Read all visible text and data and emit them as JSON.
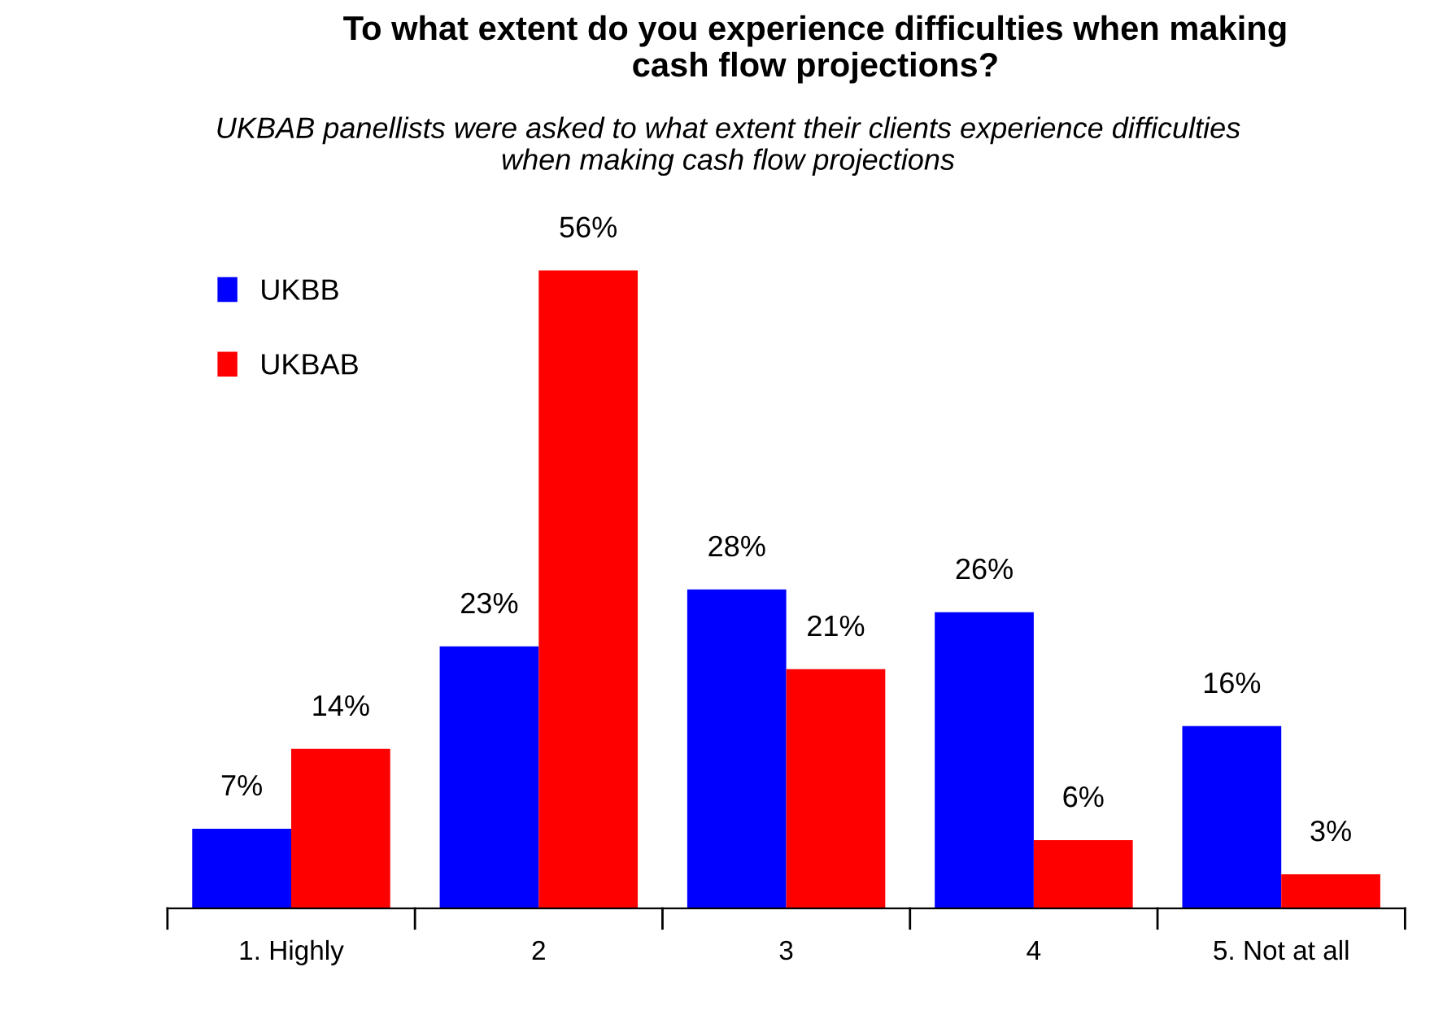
{
  "chart_data": {
    "type": "bar",
    "title": "To what extent do you experience difficulties when making\ncash flow projections?",
    "subtitle": "UKBAB panellists were asked to what extent their clients experience difficulties\nwhen making cash flow projections",
    "categories": [
      "1. Highly",
      "2",
      "3",
      "4",
      "5. Not at all"
    ],
    "series": [
      {
        "name": "UKBB",
        "color": "#0000ff",
        "values": [
          7,
          23,
          28,
          26,
          16
        ],
        "value_labels": [
          "7%",
          "23%",
          "28%",
          "26%",
          "16%"
        ]
      },
      {
        "name": "UKBAB",
        "color": "#ff0000",
        "values": [
          14,
          56,
          21,
          6,
          3
        ],
        "value_labels": [
          "14%",
          "56%",
          "21%",
          "6%",
          "3%"
        ]
      }
    ],
    "legend": "top left",
    "grid": false
  }
}
